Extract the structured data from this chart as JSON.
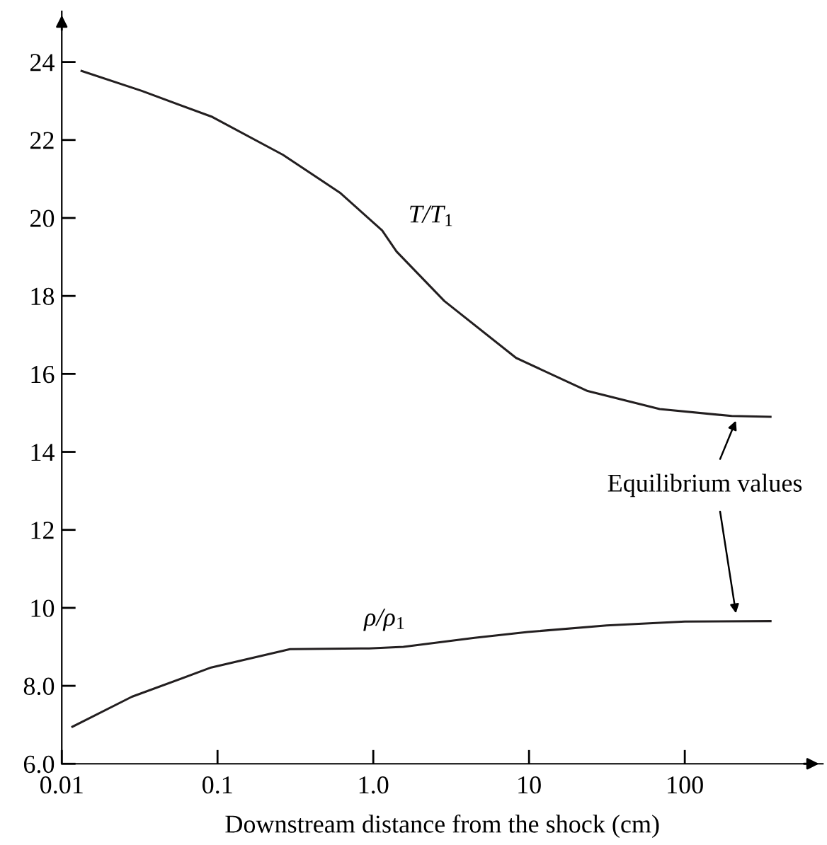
{
  "chart_data": {
    "type": "line",
    "xlabel": "Downstream distance from the shock (cm)",
    "log": "x",
    "grid": false,
    "marker": "none",
    "line_style": "solid",
    "xlim": [
      0.01,
      770
    ],
    "xticks": [
      0.01,
      0.1,
      {
        "value": 1,
        "label": "1.0"
      },
      10,
      100
    ],
    "ylim": [
      6.0,
      25.3
    ],
    "yticks": [
      {
        "value": 6,
        "label": "6.0"
      },
      {
        "value": 8,
        "label": "8.0"
      },
      10,
      12,
      14,
      16,
      18,
      20,
      22,
      24
    ],
    "annotations": [
      "Equilibrium values"
    ],
    "series": [
      {
        "name": "T/T$_{1}$",
        "color": "#231f20",
        "x": [
          0.0134,
          0.0326,
          0.0927,
          0.263,
          0.61,
          1.14,
          1.41,
          2.86,
          8.26,
          23.8,
          69,
          200,
          355
        ],
        "values": [
          23.77,
          23.26,
          22.59,
          21.62,
          20.65,
          19.68,
          19.14,
          17.87,
          16.41,
          15.56,
          15.1,
          14.92,
          14.9
        ]
      },
      {
        "name": "ρ/ρ$_{1}$",
        "color": "#231f20",
        "x": [
          0.0117,
          0.0282,
          0.091,
          0.292,
          0.94,
          1.56,
          4.47,
          9.8,
          31.5,
          100,
          355
        ],
        "values": [
          6.95,
          7.72,
          8.47,
          8.94,
          8.96,
          9.0,
          9.23,
          9.38,
          9.55,
          9.65,
          9.66
        ]
      }
    ]
  }
}
